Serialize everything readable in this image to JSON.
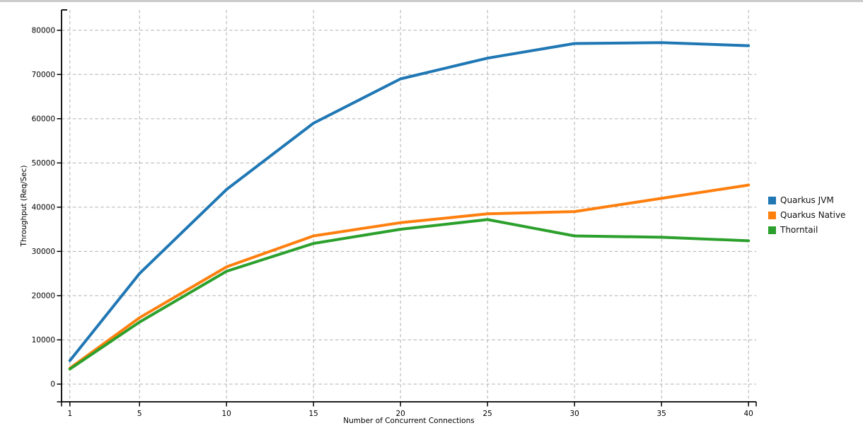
{
  "window": {
    "top_edge_color": "#cccccc",
    "background": "#ffffff"
  },
  "chart_data": {
    "type": "line",
    "title": "",
    "xlabel": "Number of Concurrent Connections",
    "ylabel": "Throughput (Req/Sec)",
    "x": [
      1,
      5,
      10,
      15,
      20,
      25,
      30,
      35,
      40
    ],
    "xticks": [
      1,
      5,
      10,
      15,
      20,
      25,
      30,
      35,
      40
    ],
    "yticks": [
      0,
      10000,
      20000,
      30000,
      40000,
      50000,
      60000,
      70000,
      80000
    ],
    "xlim": [
      0.52,
      40.44
    ],
    "ylim": [
      -4000,
      84600
    ],
    "grid": true,
    "grid_color": "#b0b0b0",
    "axis_color": "#000000",
    "line_width": 4,
    "legend_position": "right",
    "series": [
      {
        "name": "Quarkus JVM",
        "color": "#1f77b4",
        "values": [
          5300,
          25000,
          44000,
          59000,
          69000,
          73700,
          77000,
          77200,
          76500
        ]
      },
      {
        "name": "Quarkus Native",
        "color": "#ff7f0e",
        "values": [
          3600,
          15000,
          26500,
          33500,
          36500,
          38500,
          39000,
          42000,
          45000
        ]
      },
      {
        "name": "Thorntail",
        "color": "#2ca02c",
        "values": [
          3400,
          14000,
          25500,
          31800,
          35000,
          37200,
          33500,
          33200,
          32400
        ]
      }
    ]
  }
}
